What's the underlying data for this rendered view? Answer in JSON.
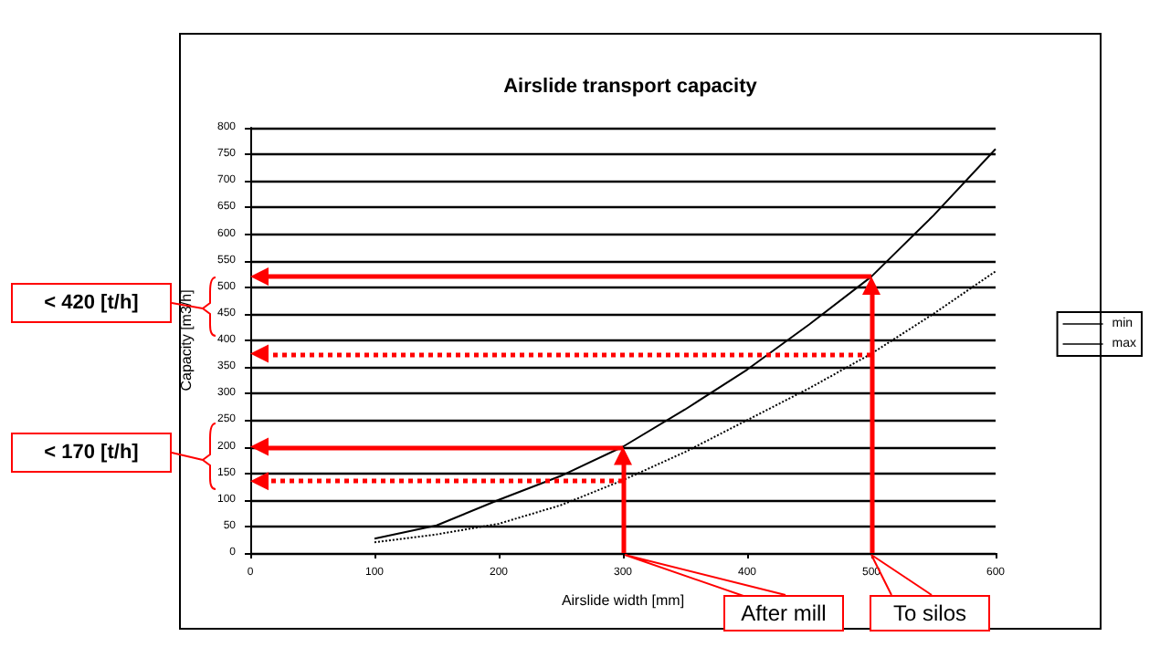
{
  "chart_data": {
    "type": "line",
    "title": "Airslide transport capacity",
    "xlabel": "Airslide width [mm]",
    "ylabel": "Capacity [m3/h]",
    "x": [
      100,
      150,
      200,
      250,
      300,
      350,
      400,
      450,
      500,
      550,
      600
    ],
    "series": [
      {
        "name": "min",
        "color": "#000000",
        "line_style": "dotted",
        "values": [
          20,
          35,
          55,
          90,
          137,
          190,
          250,
          310,
          375,
          450,
          530
        ]
      },
      {
        "name": "max",
        "color": "#000000",
        "line_style": "solid",
        "values": [
          27,
          52,
          100,
          145,
          200,
          270,
          345,
          430,
          520,
          635,
          760
        ]
      }
    ],
    "xlim": [
      0,
      600
    ],
    "xticks": [
      0,
      100,
      200,
      300,
      400,
      500,
      600
    ],
    "ylim": [
      0,
      800
    ],
    "yticks": [
      0,
      50,
      100,
      150,
      200,
      250,
      300,
      350,
      400,
      450,
      500,
      550,
      600,
      650,
      700,
      750,
      800
    ],
    "ref_lines": [
      {
        "axis": "y",
        "value": 520,
        "color": "#ff0000",
        "line_style": "solid"
      },
      {
        "axis": "y",
        "value": 375,
        "color": "#ff0000",
        "line_style": "dotted"
      },
      {
        "axis": "y",
        "value": 200,
        "color": "#ff0000",
        "line_style": "solid"
      },
      {
        "axis": "y",
        "value": 135,
        "color": "#ff0000",
        "line_style": "dotted"
      },
      {
        "axis": "x",
        "value": 300,
        "color": "#ff0000",
        "line_style": "solid"
      },
      {
        "axis": "x",
        "value": 500,
        "color": "#ff0000",
        "line_style": "solid"
      }
    ],
    "annotations": [
      "< 420 [t/h]",
      "< 170 [t/h]",
      "After mill",
      "To silos"
    ],
    "grid": "y",
    "legend": "right",
    "marker": "none"
  }
}
